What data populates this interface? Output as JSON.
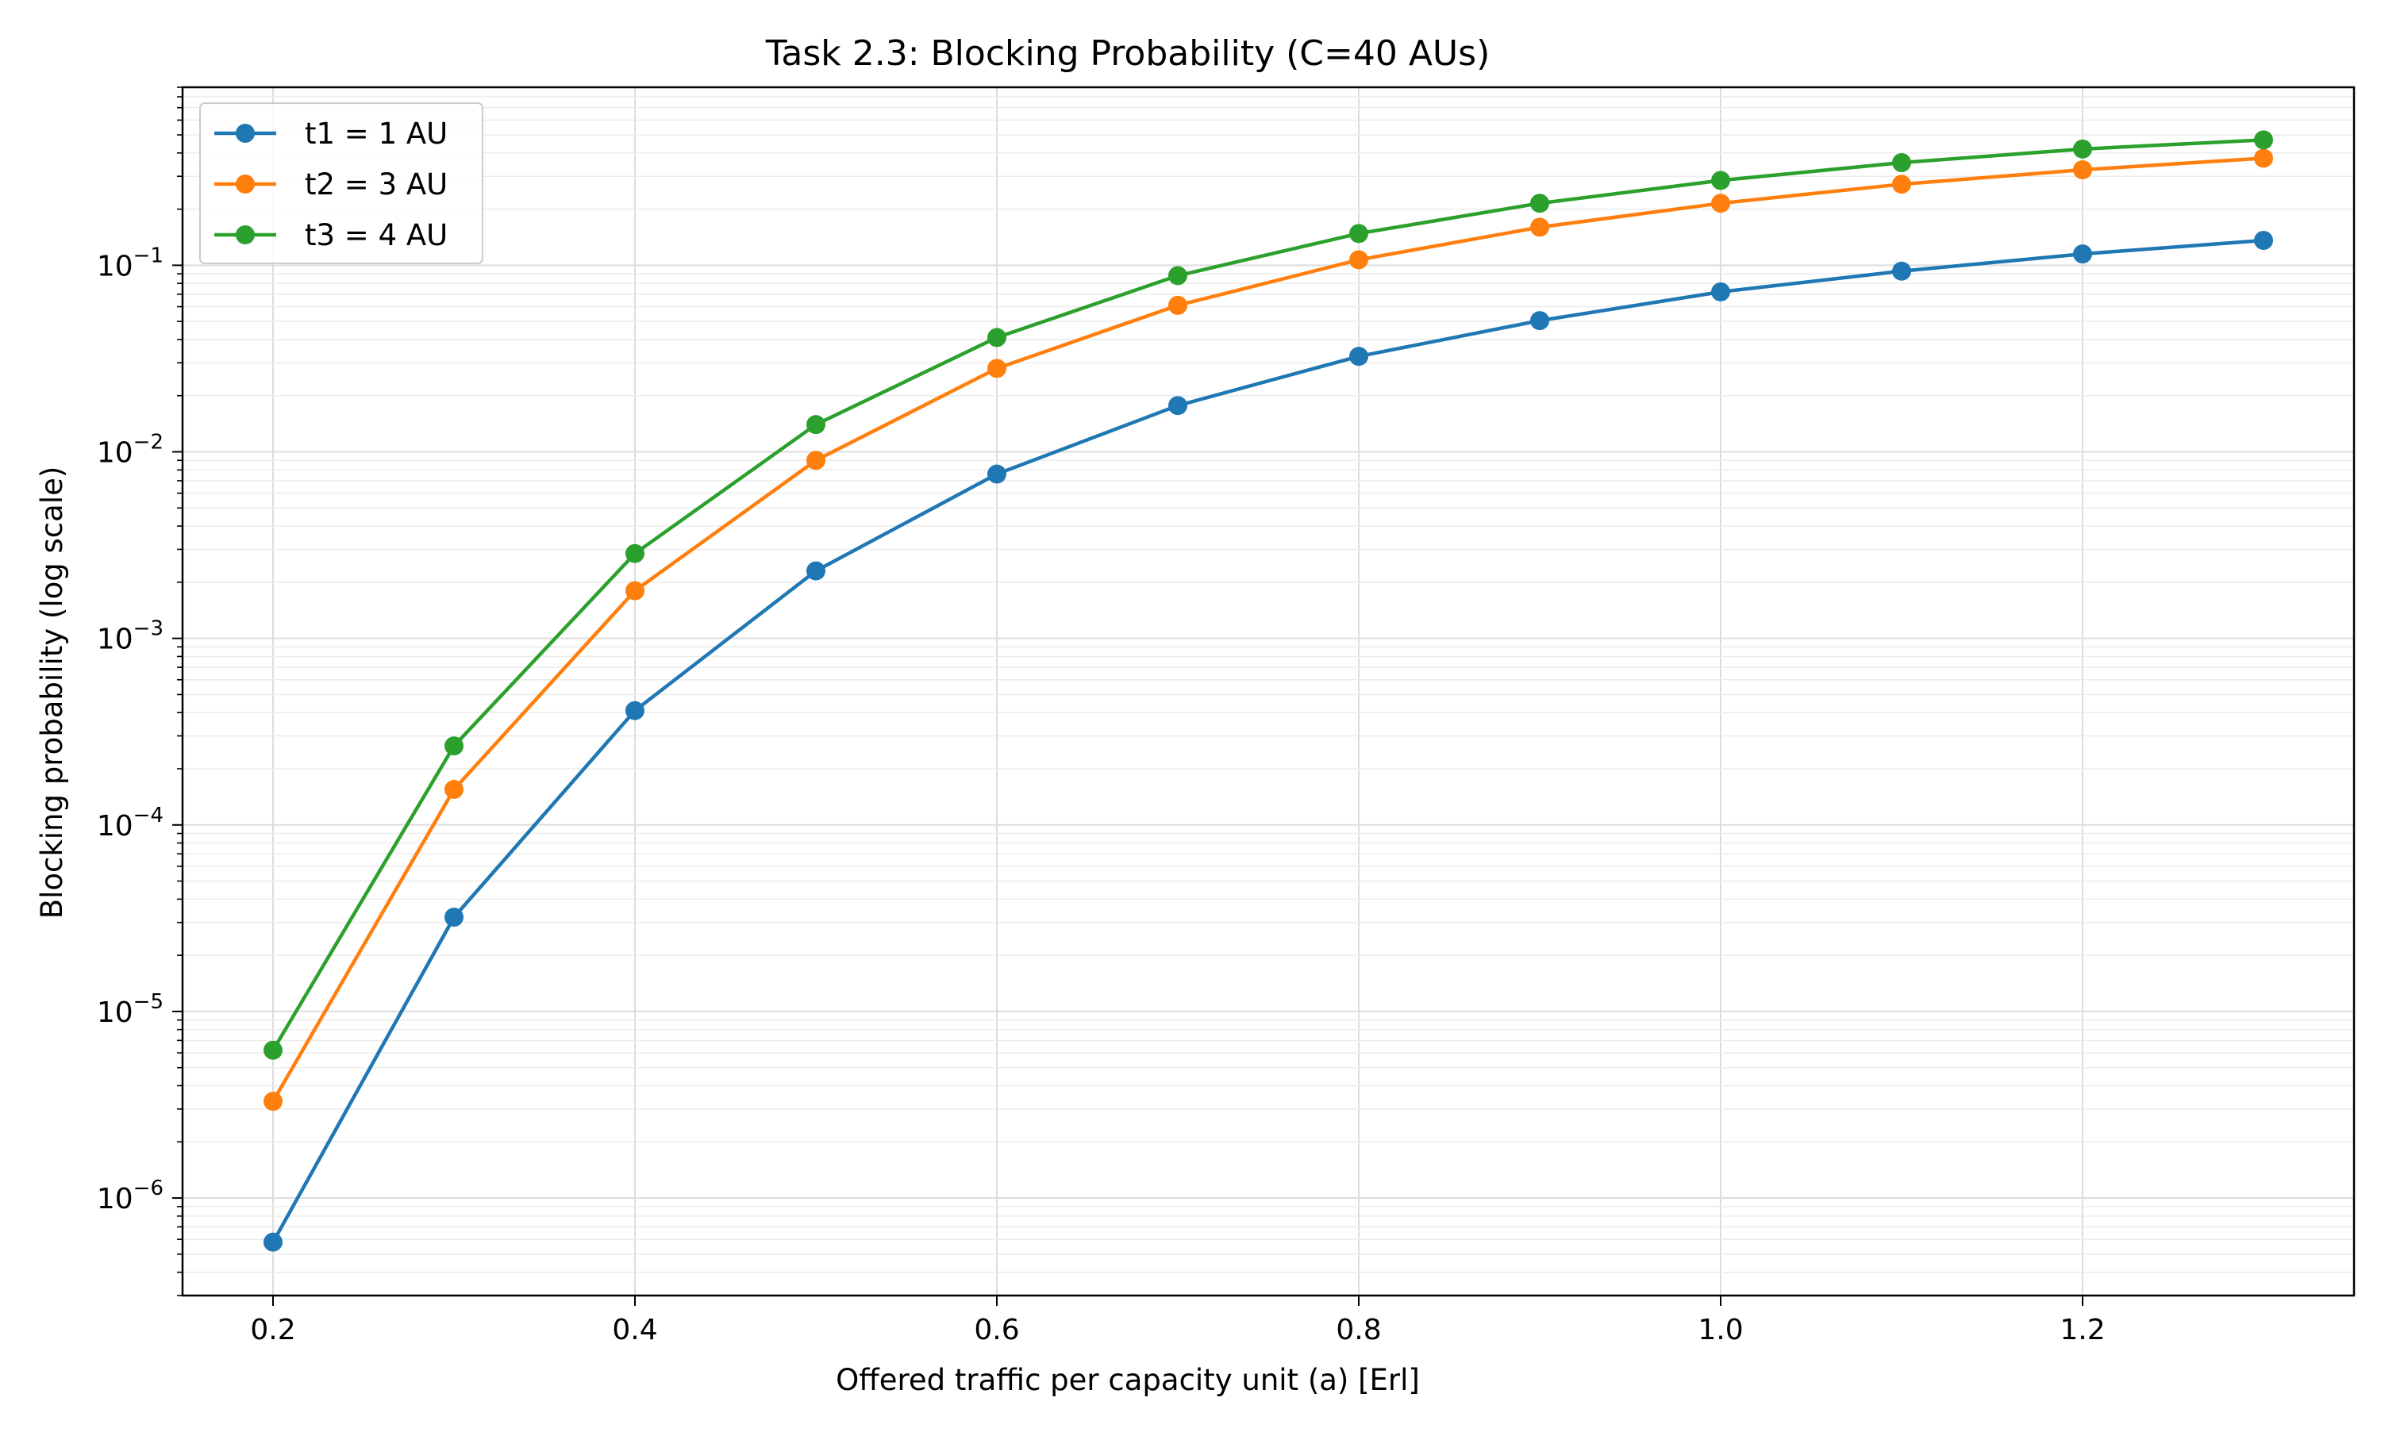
{
  "chart_data": {
    "type": "line",
    "title": "Task 2.3: Blocking Probability (C=40 AUs)",
    "xlabel": "Offered traffic per capacity unit (a) [Erl]",
    "ylabel": "Blocking probability (log scale)",
    "x": [
      0.2,
      0.3,
      0.4,
      0.5,
      0.6,
      0.7,
      0.8,
      0.9,
      1.0,
      1.1,
      1.2,
      1.3
    ],
    "xlim": [
      0.15,
      1.35
    ],
    "ylim": [
      3e-07,
      0.9
    ],
    "yscale": "log",
    "xticks": [
      {
        "value": 0.2,
        "label": "0.2"
      },
      {
        "value": 0.4,
        "label": "0.4"
      },
      {
        "value": 0.6,
        "label": "0.6"
      },
      {
        "value": 0.8,
        "label": "0.8"
      },
      {
        "value": 1.0,
        "label": "1.0"
      },
      {
        "value": 1.2,
        "label": "1.2"
      }
    ],
    "yticks": [
      {
        "value": 1e-06,
        "base": "10",
        "exp": "−6"
      },
      {
        "value": 1e-05,
        "base": "10",
        "exp": "−5"
      },
      {
        "value": 0.0001,
        "base": "10",
        "exp": "−4"
      },
      {
        "value": 0.001,
        "base": "10",
        "exp": "−3"
      },
      {
        "value": 0.01,
        "base": "10",
        "exp": "−2"
      },
      {
        "value": 0.1,
        "base": "10",
        "exp": "−1"
      }
    ],
    "grid": true,
    "legend_position": "top-left",
    "series": [
      {
        "name": "t1 = 1 AU",
        "color": "#1f77b4",
        "values": [
          5.8e-07,
          3.2e-05,
          0.00041,
          0.0023,
          0.0076,
          0.0177,
          0.0325,
          0.0505,
          0.072,
          0.093,
          0.115,
          0.136
        ]
      },
      {
        "name": "t2 = 3 AU",
        "color": "#ff7f0e",
        "values": [
          3.3e-06,
          0.000155,
          0.0018,
          0.009,
          0.028,
          0.061,
          0.107,
          0.16,
          0.215,
          0.272,
          0.325,
          0.375
        ]
      },
      {
        "name": "t3 = 4 AU",
        "color": "#2ca02c",
        "values": [
          6.2e-06,
          0.000265,
          0.00285,
          0.014,
          0.041,
          0.088,
          0.148,
          0.215,
          0.285,
          0.355,
          0.42,
          0.47
        ]
      }
    ]
  }
}
